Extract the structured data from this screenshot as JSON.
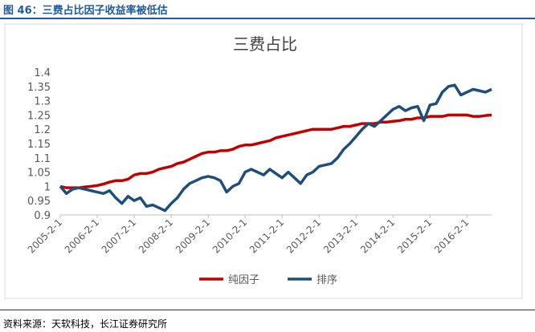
{
  "header": {
    "title": "图 46：三费占比因子收益率被低估"
  },
  "chart_data": {
    "type": "line",
    "title": "三费占比",
    "categories": [
      "2005-2-1",
      null,
      null,
      null,
      null,
      null,
      "2006-2-1",
      null,
      null,
      null,
      null,
      null,
      "2007-2-1",
      null,
      null,
      null,
      null,
      null,
      "2008-2-1",
      null,
      null,
      null,
      null,
      null,
      "2009-2-1",
      null,
      null,
      null,
      null,
      null,
      "2010-2-1",
      null,
      null,
      null,
      null,
      null,
      "2011-2-1",
      null,
      null,
      null,
      null,
      null,
      "2012-2-1",
      null,
      null,
      null,
      null,
      null,
      "2013-2-1",
      null,
      null,
      null,
      null,
      null,
      "2014-2-1",
      null,
      null,
      null,
      null,
      null,
      "2015-2-1",
      null,
      null,
      null,
      null,
      null,
      "2016-2-1",
      null,
      null,
      null,
      null
    ],
    "series": [
      {
        "name": "纯因子",
        "color": "#c00000",
        "values": [
          1.0,
          0.995,
          0.995,
          0.995,
          0.998,
          1.0,
          1.003,
          1.008,
          1.015,
          1.02,
          1.02,
          1.025,
          1.04,
          1.045,
          1.045,
          1.05,
          1.06,
          1.065,
          1.07,
          1.08,
          1.085,
          1.095,
          1.105,
          1.115,
          1.12,
          1.12,
          1.125,
          1.125,
          1.13,
          1.14,
          1.145,
          1.145,
          1.15,
          1.155,
          1.16,
          1.17,
          1.175,
          1.18,
          1.185,
          1.19,
          1.195,
          1.2,
          1.2,
          1.2,
          1.2,
          1.205,
          1.21,
          1.21,
          1.215,
          1.22,
          1.22,
          1.22,
          1.225,
          1.225,
          1.228,
          1.23,
          1.235,
          1.235,
          1.24,
          1.24,
          1.245,
          1.245,
          1.245,
          1.25,
          1.25,
          1.25,
          1.25,
          1.245,
          1.245,
          1.248,
          1.25
        ]
      },
      {
        "name": "排序",
        "color": "#1f4e79",
        "values": [
          1.0,
          0.975,
          0.99,
          0.995,
          0.99,
          0.985,
          0.98,
          0.975,
          0.985,
          0.96,
          0.94,
          0.965,
          0.95,
          0.96,
          0.93,
          0.935,
          0.925,
          0.915,
          0.94,
          0.96,
          0.99,
          1.01,
          1.02,
          1.03,
          1.035,
          1.03,
          1.02,
          0.98,
          1.0,
          1.01,
          1.05,
          1.06,
          1.05,
          1.04,
          1.06,
          1.045,
          1.03,
          1.05,
          1.03,
          1.01,
          1.04,
          1.05,
          1.07,
          1.075,
          1.08,
          1.1,
          1.13,
          1.15,
          1.175,
          1.2,
          1.22,
          1.21,
          1.23,
          1.25,
          1.27,
          1.28,
          1.265,
          1.275,
          1.28,
          1.23,
          1.285,
          1.29,
          1.33,
          1.35,
          1.355,
          1.32,
          1.33,
          1.34,
          1.335,
          1.33,
          1.34
        ]
      }
    ],
    "ylim": [
      0.9,
      1.4
    ],
    "yticks": [
      0.9,
      0.95,
      1,
      1.05,
      1.1,
      1.15,
      1.2,
      1.25,
      1.3,
      1.35,
      1.4
    ],
    "grid": false,
    "legend": "bottom"
  },
  "footer": {
    "source": "资料来源：天软科技，长江证券研究所"
  }
}
